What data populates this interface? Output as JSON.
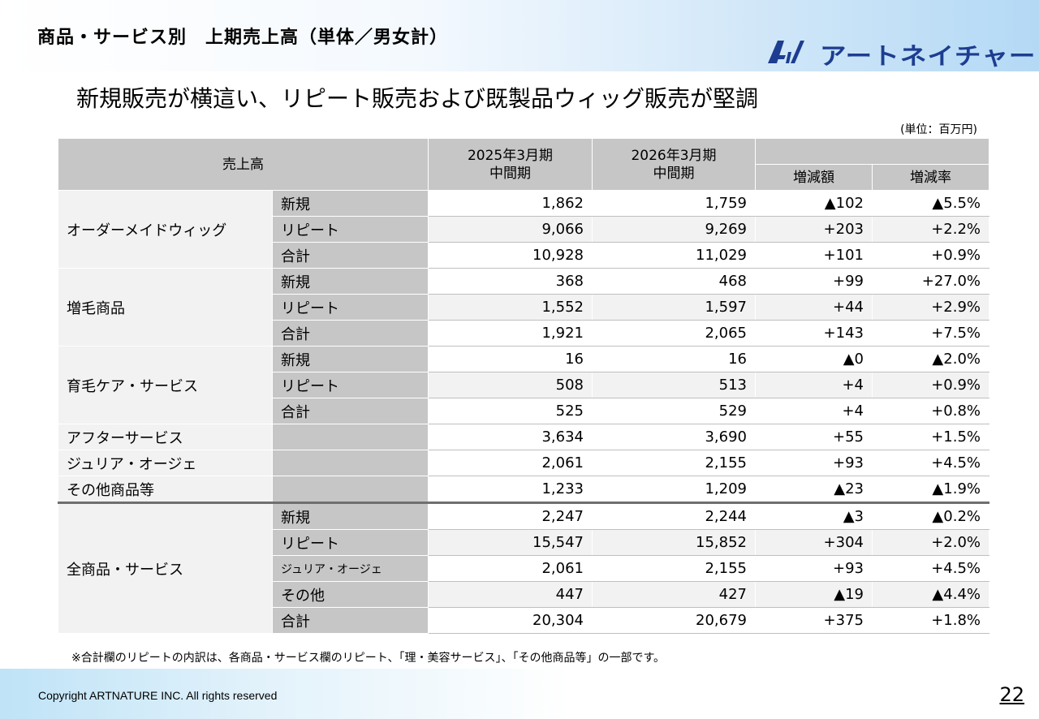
{
  "slide": {
    "header_title": "商品・サービス別　上期売上高（単体／男女計）",
    "brand_name": "アートネイチャー",
    "logo_mark": "AI",
    "subtitle": "新規販売が横這い、リピート販売および既製品ウィッグ販売が堅調",
    "unit_note": "(単位：百万円)",
    "footnote": "※合計欄のリピートの内訳は、各商品・サービス欄のリピート、「理・美容サービス」、「その他商品等」の一部です。",
    "copyright": "Copyright ARTNATURE INC. All rights reserved",
    "page_number": "22",
    "colors": {
      "header_cell": "#c6c6c6",
      "row_shade": "#f2f2f2",
      "brand": "#1d3d91"
    }
  },
  "table": {
    "header": {
      "sales": "売上高",
      "fy2025": "2025年3月期\n中間期",
      "fy2026": "2026年3月期\n中間期",
      "change_amount": "増減額",
      "change_rate": "増減率"
    },
    "groups": [
      {
        "category": "オーダーメイドウィッグ",
        "rows": [
          {
            "sub": "新規",
            "v2025": "1,862",
            "v2026": "1,759",
            "diff": "▲102",
            "rate": "▲5.5%"
          },
          {
            "sub": "リピート",
            "v2025": "9,066",
            "v2026": "9,269",
            "diff": "+203",
            "rate": "+2.2%"
          },
          {
            "sub": "合計",
            "v2025": "10,928",
            "v2026": "11,029",
            "diff": "+101",
            "rate": "+0.9%"
          }
        ]
      },
      {
        "category": "増毛商品",
        "rows": [
          {
            "sub": "新規",
            "v2025": "368",
            "v2026": "468",
            "diff": "+99",
            "rate": "+27.0%"
          },
          {
            "sub": "リピート",
            "v2025": "1,552",
            "v2026": "1,597",
            "diff": "+44",
            "rate": "+2.9%"
          },
          {
            "sub": "合計",
            "v2025": "1,921",
            "v2026": "2,065",
            "diff": "+143",
            "rate": "+7.5%"
          }
        ]
      },
      {
        "category": "育毛ケア・サービス",
        "rows": [
          {
            "sub": "新規",
            "v2025": "16",
            "v2026": "16",
            "diff": "▲0",
            "rate": "▲2.0%"
          },
          {
            "sub": "リピート",
            "v2025": "508",
            "v2026": "513",
            "diff": "+4",
            "rate": "+0.9%"
          },
          {
            "sub": "合計",
            "v2025": "525",
            "v2026": "529",
            "diff": "+4",
            "rate": "+0.8%"
          }
        ]
      },
      {
        "category": "アフターサービス",
        "rows": [
          {
            "sub": "",
            "v2025": "3,634",
            "v2026": "3,690",
            "diff": "+55",
            "rate": "+1.5%"
          }
        ]
      },
      {
        "category": "ジュリア・オージェ",
        "rows": [
          {
            "sub": "",
            "v2025": "2,061",
            "v2026": "2,155",
            "diff": "+93",
            "rate": "+4.5%"
          }
        ]
      },
      {
        "category": "その他商品等",
        "rows": [
          {
            "sub": "",
            "v2025": "1,233",
            "v2026": "1,209",
            "diff": "▲23",
            "rate": "▲1.9%"
          }
        ]
      },
      {
        "category": "全商品・サービス",
        "rows": [
          {
            "sub": "新規",
            "v2025": "2,247",
            "v2026": "2,244",
            "diff": "▲3",
            "rate": "▲0.2%"
          },
          {
            "sub": "リピート",
            "v2025": "15,547",
            "v2026": "15,852",
            "diff": "+304",
            "rate": "+2.0%"
          },
          {
            "sub": "ジュリア・オージェ",
            "v2025": "2,061",
            "v2026": "2,155",
            "diff": "+93",
            "rate": "+4.5%"
          },
          {
            "sub": "その他",
            "v2025": "447",
            "v2026": "427",
            "diff": "▲19",
            "rate": "▲4.4%"
          },
          {
            "sub": "合計",
            "v2025": "20,304",
            "v2026": "20,679",
            "diff": "+375",
            "rate": "+1.8%"
          }
        ]
      }
    ]
  }
}
